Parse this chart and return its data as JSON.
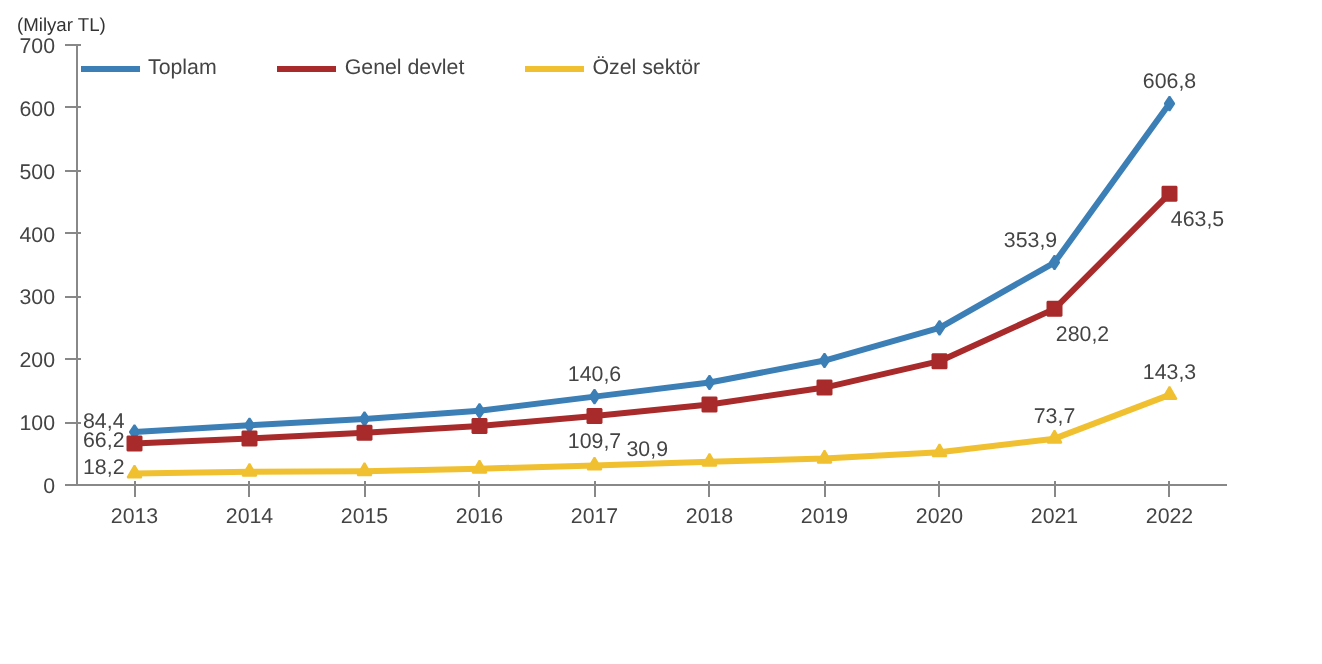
{
  "chart_data": {
    "type": "line",
    "annotations": [
      "(Milyar TL)"
    ],
    "categories": [
      "2013",
      "2014",
      "2015",
      "2016",
      "2017",
      "2018",
      "2019",
      "2020",
      "2021",
      "2022"
    ],
    "series": [
      {
        "name": "Toplam",
        "color": "#3b7fb6",
        "marker": "diamond",
        "values": [
          84.4,
          95,
          105,
          118,
          140.6,
          163,
          198,
          250,
          353.9,
          606.8
        ],
        "value_labels": [
          "84,4",
          null,
          null,
          null,
          "140,6",
          null,
          null,
          null,
          "353,9",
          "606,8"
        ]
      },
      {
        "name": "Genel devlet",
        "color": "#a82a2a",
        "marker": "square",
        "values": [
          66.2,
          74,
          83,
          94,
          109.7,
          128,
          155,
          197,
          280.2,
          463.5
        ],
        "value_labels": [
          "66,2",
          null,
          null,
          null,
          "109,7",
          null,
          null,
          null,
          "280,2",
          "463,5"
        ]
      },
      {
        "name": "Özel sektör",
        "color": "#f0c030",
        "marker": "triangle",
        "values": [
          18.2,
          21,
          22,
          26,
          30.9,
          37,
          42,
          52,
          73.7,
          143.3
        ],
        "value_labels": [
          "18,2",
          null,
          null,
          null,
          "30,9",
          null,
          null,
          null,
          "73,7",
          "143,3"
        ]
      }
    ],
    "ylim": [
      0,
      700
    ],
    "yticks": [
      0,
      100,
      200,
      300,
      400,
      500,
      600,
      700
    ],
    "grid": false,
    "legend": "top left"
  }
}
